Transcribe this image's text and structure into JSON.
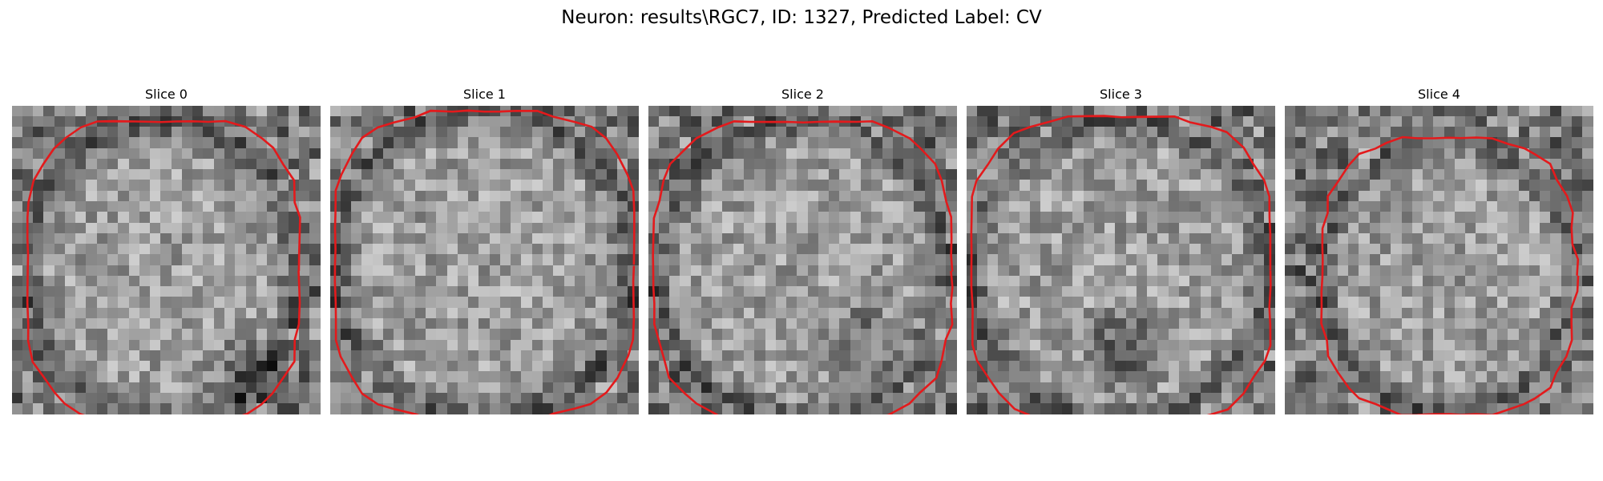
{
  "title": "Neuron: results\\RGC7, ID: 1327, Predicted Label: CV",
  "contour_color": "#e31a1c",
  "colormap": "gray",
  "slices": [
    {
      "title": "Slice 0"
    },
    {
      "title": "Slice 1"
    },
    {
      "title": "Slice 2"
    },
    {
      "title": "Slice 3"
    },
    {
      "title": "Slice 4"
    }
  ]
}
